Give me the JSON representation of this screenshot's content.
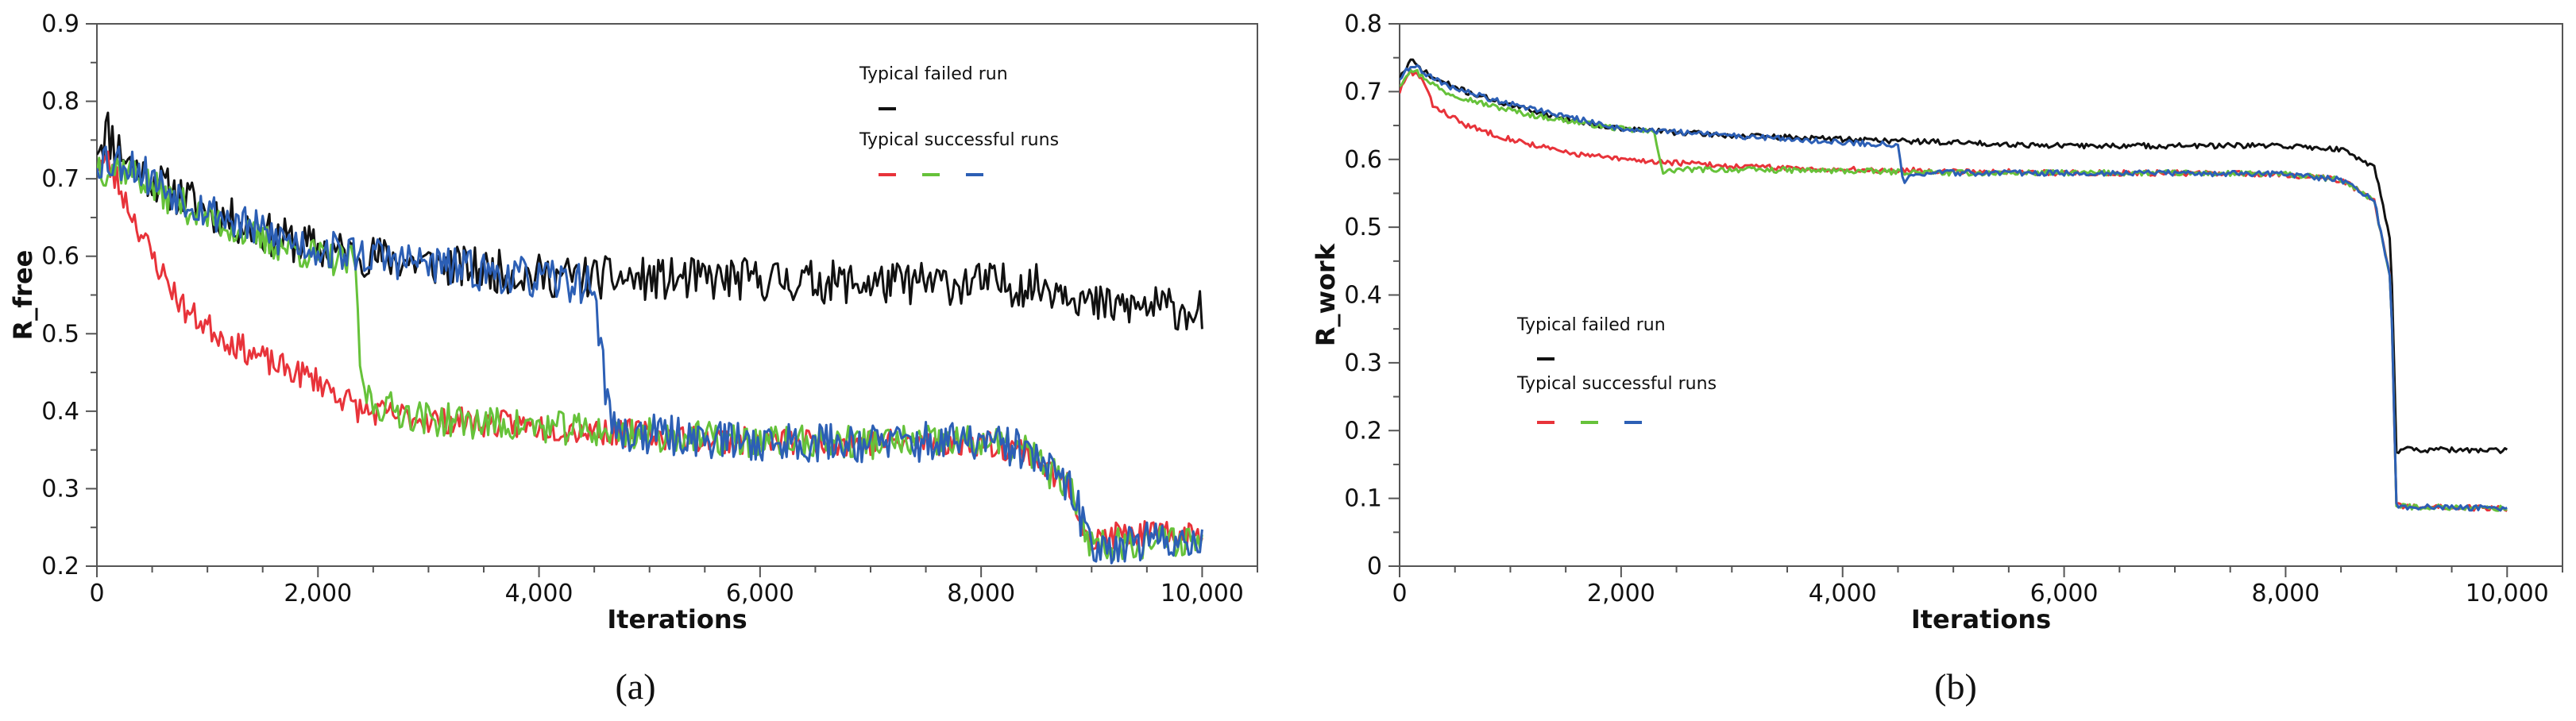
{
  "figure": {
    "captions": [
      "(a)",
      "(b)"
    ]
  },
  "chart_data": [
    {
      "type": "line",
      "panel": "a",
      "xlabel": "Iterations",
      "ylabel": "R_free",
      "xlim": [
        0,
        10500
      ],
      "ylim": [
        0.2,
        0.9
      ],
      "xticks": [
        0,
        2000,
        4000,
        6000,
        8000,
        10000
      ],
      "xtick_labels": [
        "0",
        "2,000",
        "4,000",
        "6,000",
        "8,000",
        "10,000"
      ],
      "yticks": [
        0.2,
        0.3,
        0.4,
        0.5,
        0.6,
        0.7,
        0.8,
        0.9
      ],
      "ytick_labels": [
        "0.2",
        "0.3",
        "0.4",
        "0.5",
        "0.6",
        "0.7",
        "0.8",
        "0.9"
      ],
      "legend": {
        "position": "top-right",
        "failed_label": "Typical failed run",
        "success_label": "Typical successful runs"
      },
      "series": [
        {
          "name": "failed",
          "color": "#111111",
          "noise": 0.028,
          "seed": 11,
          "x": [
            0,
            100,
            300,
            600,
            1000,
            1500,
            2000,
            2500,
            3000,
            4000,
            5000,
            6000,
            7000,
            8000,
            8800,
            9000,
            9500,
            10000
          ],
          "values": [
            0.75,
            0.76,
            0.72,
            0.69,
            0.66,
            0.63,
            0.61,
            0.6,
            0.59,
            0.575,
            0.57,
            0.57,
            0.565,
            0.565,
            0.56,
            0.535,
            0.535,
            0.53
          ]
        },
        {
          "name": "success-red",
          "color": "#e8333a",
          "noise": 0.018,
          "seed": 23,
          "x": [
            0,
            100,
            300,
            500,
            800,
            1200,
            1600,
            2000,
            2400,
            3000,
            4000,
            5000,
            6000,
            7000,
            8000,
            8400,
            8800,
            9000,
            9200,
            10000
          ],
          "values": [
            0.72,
            0.72,
            0.66,
            0.6,
            0.53,
            0.49,
            0.46,
            0.44,
            0.4,
            0.39,
            0.38,
            0.37,
            0.36,
            0.36,
            0.36,
            0.35,
            0.3,
            0.23,
            0.24,
            0.24
          ]
        },
        {
          "name": "success-green",
          "color": "#66c23a",
          "noise": 0.022,
          "seed": 37,
          "x": [
            0,
            300,
            600,
            1000,
            1500,
            2000,
            2350,
            2380,
            2500,
            3000,
            4000,
            5000,
            6000,
            7000,
            8000,
            8400,
            8800,
            9000,
            10000
          ],
          "values": [
            0.72,
            0.71,
            0.68,
            0.65,
            0.62,
            0.6,
            0.59,
            0.44,
            0.41,
            0.39,
            0.38,
            0.37,
            0.36,
            0.36,
            0.36,
            0.35,
            0.3,
            0.228,
            0.235
          ]
        },
        {
          "name": "success-blue",
          "color": "#2c5fb5",
          "noise": 0.026,
          "seed": 53,
          "x": [
            0,
            300,
            600,
            1000,
            1500,
            2000,
            2500,
            3000,
            3500,
            4000,
            4400,
            4500,
            4600,
            4700,
            5000,
            6000,
            7000,
            8000,
            8400,
            8800,
            9000,
            10000
          ],
          "values": [
            0.73,
            0.72,
            0.69,
            0.66,
            0.63,
            0.61,
            0.6,
            0.59,
            0.58,
            0.57,
            0.565,
            0.56,
            0.43,
            0.37,
            0.37,
            0.36,
            0.36,
            0.36,
            0.35,
            0.3,
            0.228,
            0.235
          ]
        }
      ]
    },
    {
      "type": "line",
      "panel": "b",
      "xlabel": "Iterations",
      "ylabel": "R_work",
      "xlim": [
        0,
        10500
      ],
      "ylim": [
        0,
        0.8
      ],
      "xticks": [
        0,
        2000,
        4000,
        6000,
        8000,
        10000
      ],
      "xtick_labels": [
        "0",
        "2,000",
        "4,000",
        "6,000",
        "8,000",
        "10,000"
      ],
      "yticks": [
        0,
        0.1,
        0.2,
        0.3,
        0.4,
        0.5,
        0.6,
        0.7,
        0.8
      ],
      "ytick_labels": [
        "0",
        "0.1",
        "0.2",
        "0.3",
        "0.4",
        "0.5",
        "0.6",
        "0.7",
        "0.8"
      ],
      "legend": {
        "position": "center-left",
        "failed_label": "Typical failed run",
        "success_label": "Typical successful runs"
      },
      "series": [
        {
          "name": "failed",
          "color": "#111111",
          "noise": 0.004,
          "seed": 71,
          "x": [
            0,
            100,
            300,
            600,
            1000,
            1500,
            2000,
            3000,
            4000,
            5000,
            6000,
            7000,
            8000,
            8500,
            8800,
            8950,
            9000,
            9050,
            9100,
            10000
          ],
          "values": [
            0.72,
            0.745,
            0.72,
            0.7,
            0.68,
            0.66,
            0.645,
            0.635,
            0.63,
            0.625,
            0.62,
            0.62,
            0.62,
            0.615,
            0.59,
            0.48,
            0.17,
            0.172,
            0.172,
            0.17
          ]
        },
        {
          "name": "success-red",
          "color": "#e8333a",
          "noise": 0.004,
          "seed": 83,
          "x": [
            0,
            100,
            200,
            300,
            600,
            1000,
            1500,
            2000,
            3000,
            4000,
            5000,
            6000,
            7000,
            8000,
            8500,
            8800,
            8950,
            9000,
            9050,
            10000
          ],
          "values": [
            0.7,
            0.73,
            0.72,
            0.68,
            0.65,
            0.63,
            0.61,
            0.6,
            0.59,
            0.585,
            0.583,
            0.58,
            0.58,
            0.578,
            0.57,
            0.54,
            0.42,
            0.09,
            0.088,
            0.085
          ]
        },
        {
          "name": "success-green",
          "color": "#66c23a",
          "noise": 0.004,
          "seed": 97,
          "x": [
            0,
            100,
            400,
            800,
            1200,
            1600,
            2000,
            2300,
            2380,
            2500,
            3000,
            4000,
            5000,
            6000,
            7000,
            8000,
            8500,
            8800,
            8950,
            9000,
            9050,
            10000
          ],
          "values": [
            0.71,
            0.735,
            0.7,
            0.68,
            0.665,
            0.655,
            0.645,
            0.64,
            0.58,
            0.585,
            0.585,
            0.583,
            0.58,
            0.58,
            0.58,
            0.578,
            0.57,
            0.54,
            0.42,
            0.09,
            0.088,
            0.085
          ]
        },
        {
          "name": "success-blue",
          "color": "#2c5fb5",
          "noise": 0.004,
          "seed": 109,
          "x": [
            0,
            100,
            400,
            800,
            1200,
            1600,
            2000,
            3000,
            4000,
            4400,
            4500,
            4550,
            4650,
            5000,
            6000,
            7000,
            8000,
            8500,
            8800,
            8950,
            9000,
            9050,
            10000
          ],
          "values": [
            0.72,
            0.74,
            0.71,
            0.69,
            0.675,
            0.66,
            0.645,
            0.635,
            0.625,
            0.622,
            0.62,
            0.565,
            0.58,
            0.58,
            0.58,
            0.58,
            0.578,
            0.57,
            0.54,
            0.42,
            0.09,
            0.088,
            0.085
          ]
        }
      ]
    }
  ]
}
